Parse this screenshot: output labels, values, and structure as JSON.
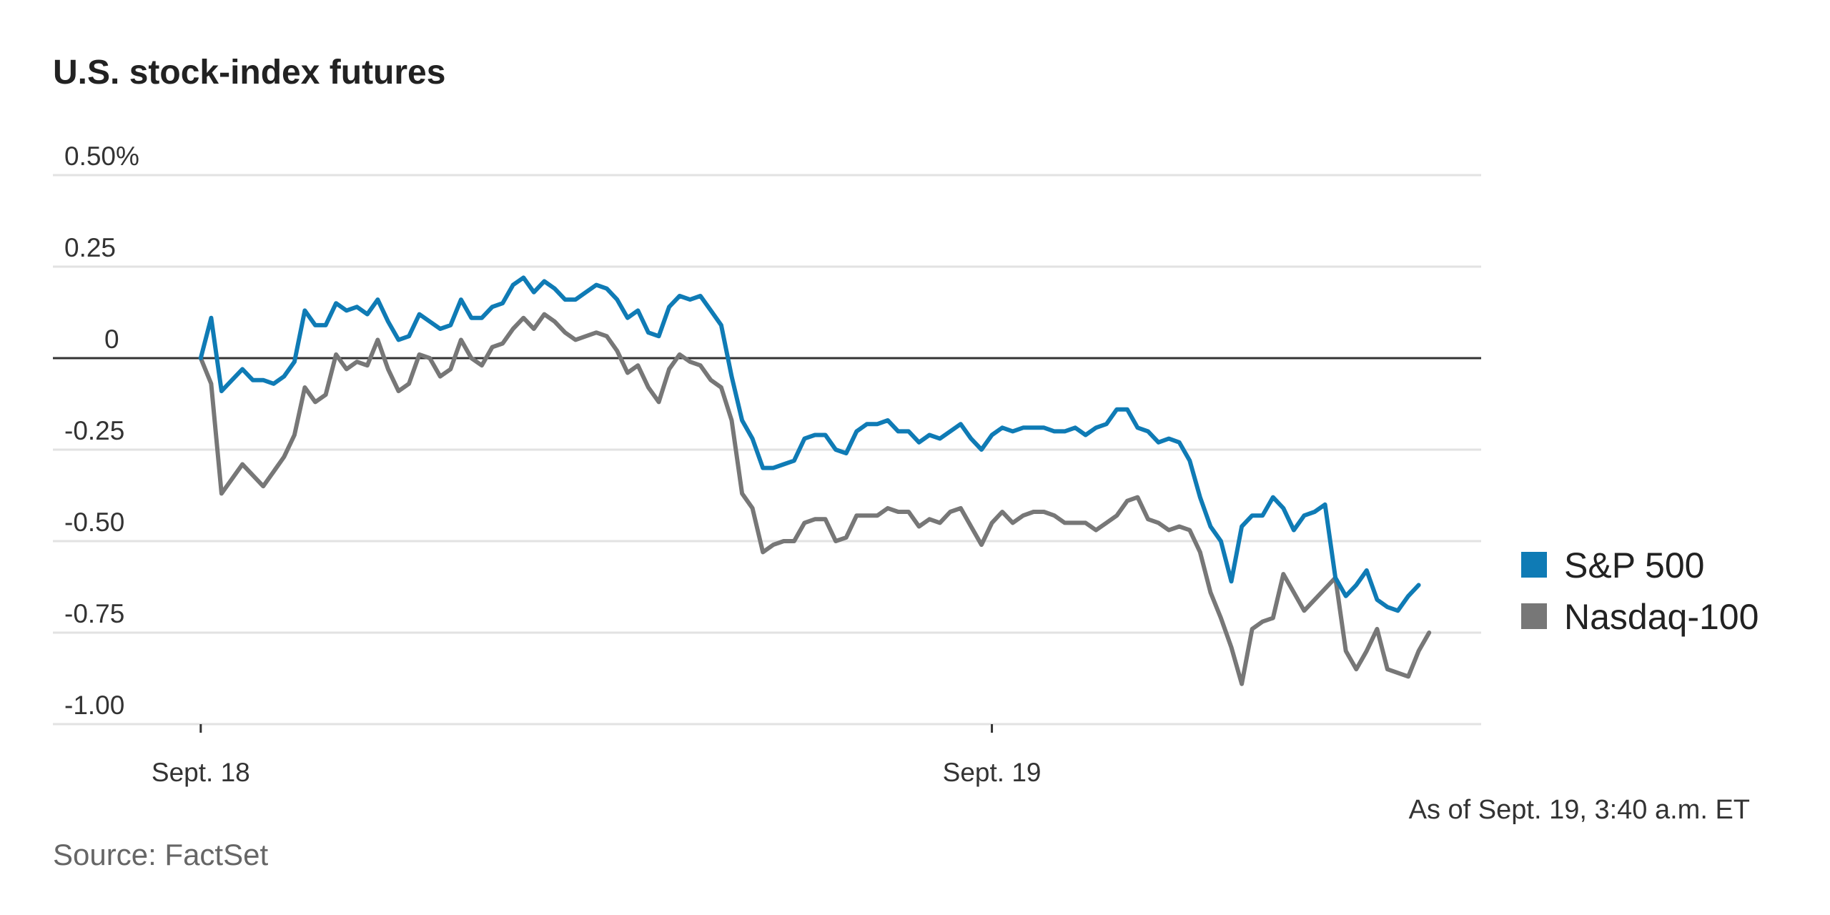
{
  "title": "U.S. stock-index futures",
  "as_of": "As of Sept. 19, 3:40 a.m. ET",
  "source": "Source: FactSet",
  "chart_data": {
    "type": "line",
    "yticks": [
      {
        "value": 0.5,
        "label": "0.50%"
      },
      {
        "value": 0.25,
        "label": "0.25"
      },
      {
        "value": 0,
        "label": "0"
      },
      {
        "value": -0.25,
        "label": "-0.25"
      },
      {
        "value": -0.5,
        "label": "-0.50"
      },
      {
        "value": -0.75,
        "label": "-0.75"
      },
      {
        "value": -1.0,
        "label": "-1.00"
      }
    ],
    "ylim": [
      -1.0,
      0.5
    ],
    "xlim": [
      -5,
      123
    ],
    "xticks": [
      {
        "x": 0,
        "label": "Sept. 18"
      },
      {
        "x": 76,
        "label": "Sept. 19"
      }
    ],
    "grid": true,
    "legend_position": "right",
    "series": [
      {
        "name": "S&P 500",
        "color": "#0f7bb5",
        "values": [
          0.0,
          0.11,
          -0.09,
          -0.06,
          -0.03,
          -0.06,
          -0.06,
          -0.07,
          -0.05,
          -0.01,
          0.13,
          0.09,
          0.09,
          0.15,
          0.13,
          0.14,
          0.12,
          0.16,
          0.1,
          0.05,
          0.06,
          0.12,
          0.1,
          0.08,
          0.09,
          0.16,
          0.11,
          0.11,
          0.14,
          0.15,
          0.2,
          0.22,
          0.18,
          0.21,
          0.19,
          0.16,
          0.16,
          0.18,
          0.2,
          0.19,
          0.16,
          0.11,
          0.13,
          0.07,
          0.06,
          0.14,
          0.17,
          0.16,
          0.17,
          0.13,
          0.09,
          -0.05,
          -0.17,
          -0.22,
          -0.3,
          -0.3,
          -0.29,
          -0.28,
          -0.22,
          -0.21,
          -0.21,
          -0.25,
          -0.26,
          -0.2,
          -0.18,
          -0.18,
          -0.17,
          -0.2,
          -0.2,
          -0.23,
          -0.21,
          -0.22,
          -0.2,
          -0.18,
          -0.22,
          -0.25,
          -0.21,
          -0.19,
          -0.2,
          -0.19,
          -0.19,
          -0.19,
          -0.2,
          -0.2,
          -0.19,
          -0.21,
          -0.19,
          -0.18,
          -0.14,
          -0.14,
          -0.19,
          -0.2,
          -0.23,
          -0.22,
          -0.23,
          -0.28,
          -0.38,
          -0.46,
          -0.5,
          -0.61,
          -0.46,
          -0.43,
          -0.43,
          -0.38,
          -0.41,
          -0.47,
          -0.43,
          -0.42,
          -0.4,
          -0.6,
          -0.65,
          -0.62,
          -0.58,
          -0.66,
          -0.68,
          -0.69,
          -0.65,
          -0.62
        ]
      },
      {
        "name": "Nasdaq-100",
        "color": "#777777",
        "values": [
          0.0,
          -0.07,
          -0.37,
          -0.33,
          -0.29,
          -0.32,
          -0.35,
          -0.31,
          -0.27,
          -0.21,
          -0.08,
          -0.12,
          -0.1,
          0.01,
          -0.03,
          -0.01,
          -0.02,
          0.05,
          -0.03,
          -0.09,
          -0.07,
          0.01,
          0.0,
          -0.05,
          -0.03,
          0.05,
          0.0,
          -0.02,
          0.03,
          0.04,
          0.08,
          0.11,
          0.08,
          0.12,
          0.1,
          0.07,
          0.05,
          0.06,
          0.07,
          0.06,
          0.02,
          -0.04,
          -0.02,
          -0.08,
          -0.12,
          -0.03,
          0.01,
          -0.01,
          -0.02,
          -0.06,
          -0.08,
          -0.17,
          -0.37,
          -0.41,
          -0.53,
          -0.51,
          -0.5,
          -0.5,
          -0.45,
          -0.44,
          -0.44,
          -0.5,
          -0.49,
          -0.43,
          -0.43,
          -0.43,
          -0.41,
          -0.42,
          -0.42,
          -0.46,
          -0.44,
          -0.45,
          -0.42,
          -0.41,
          -0.46,
          -0.51,
          -0.45,
          -0.42,
          -0.45,
          -0.43,
          -0.42,
          -0.42,
          -0.43,
          -0.45,
          -0.45,
          -0.45,
          -0.47,
          -0.45,
          -0.43,
          -0.39,
          -0.38,
          -0.44,
          -0.45,
          -0.47,
          -0.46,
          -0.47,
          -0.53,
          -0.64,
          -0.71,
          -0.79,
          -0.89,
          -0.74,
          -0.72,
          -0.71,
          -0.59,
          -0.64,
          -0.69,
          -0.66,
          -0.63,
          -0.6,
          -0.8,
          -0.85,
          -0.8,
          -0.74,
          -0.85,
          -0.86,
          -0.87,
          -0.8,
          -0.75
        ]
      }
    ]
  }
}
